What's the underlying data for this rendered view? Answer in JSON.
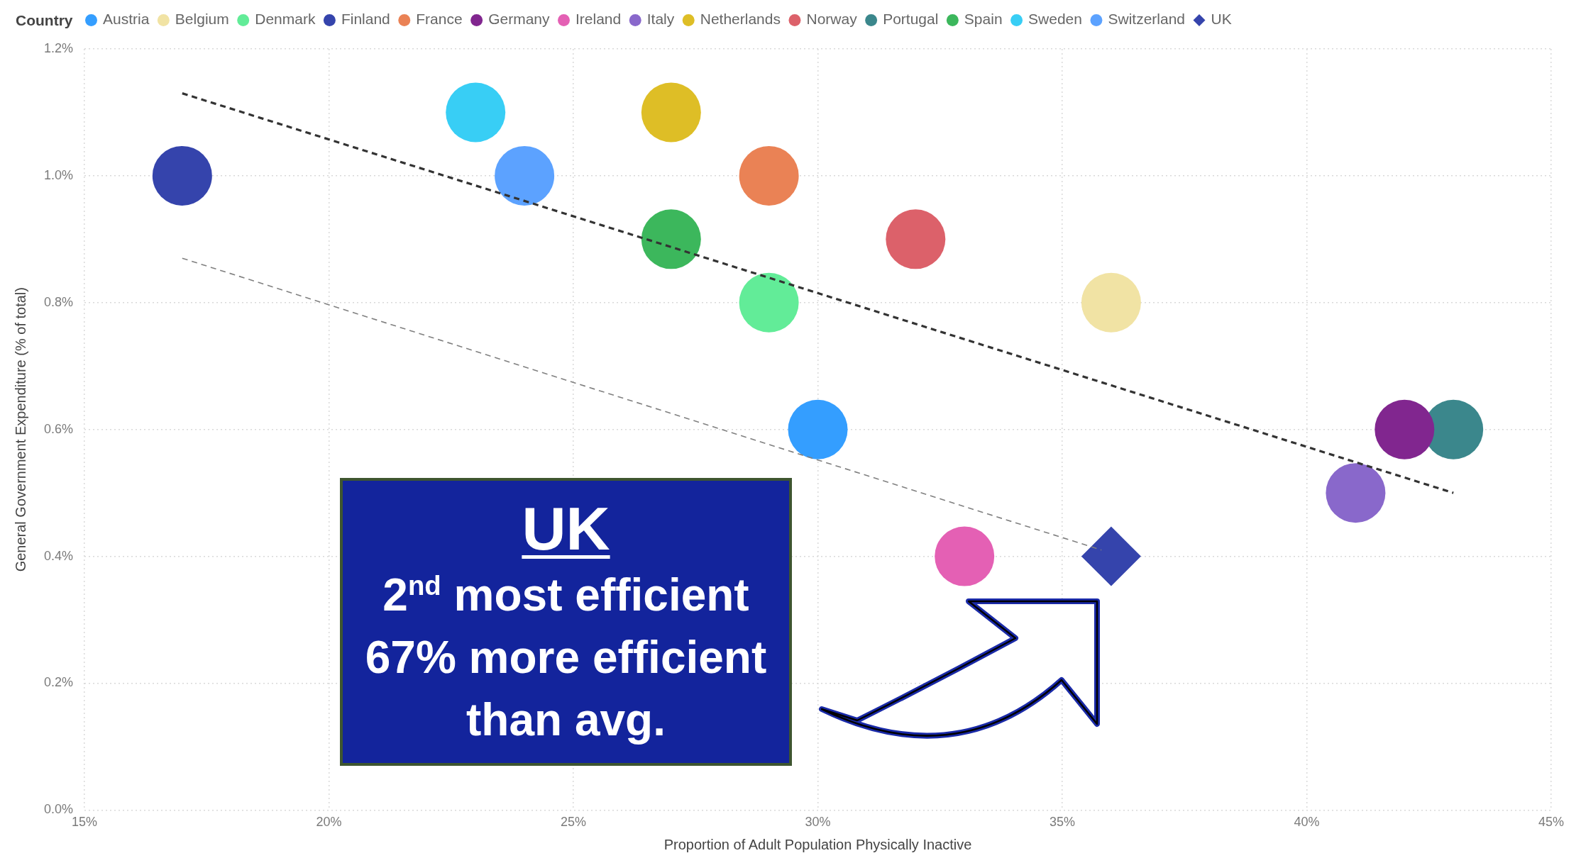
{
  "chart_data": {
    "type": "scatter",
    "xlabel": "Proportion of Adult Population Physically Inactive",
    "ylabel": "General Government Expenditure (% of total)",
    "legend_title": "Country",
    "legend": "top left",
    "marker": "circle",
    "grid": true,
    "xlim": [
      15,
      45
    ],
    "xticks": [
      {
        "value": 15,
        "label": "15%"
      },
      {
        "value": 20,
        "label": "20%"
      },
      {
        "value": 25,
        "label": "25%"
      },
      {
        "value": 30,
        "label": "30%"
      },
      {
        "value": 35,
        "label": "35%"
      },
      {
        "value": 40,
        "label": "40%"
      },
      {
        "value": 45,
        "label": "45%"
      }
    ],
    "ylim": [
      0,
      1.2
    ],
    "yticks": [
      {
        "value": 0,
        "label": "0.0%"
      },
      {
        "value": 0.2,
        "label": "0.2%"
      },
      {
        "value": 0.4,
        "label": "0.4%"
      },
      {
        "value": 0.6,
        "label": "0.6%"
      },
      {
        "value": 0.8,
        "label": "0.8%"
      },
      {
        "value": 1,
        "label": "1.0%"
      },
      {
        "value": 1.2,
        "label": "1.2%"
      }
    ],
    "series": [
      {
        "name": "Austria",
        "color": "#349eff",
        "x": [
          30
        ],
        "values": [
          0.6
        ]
      },
      {
        "name": "Belgium",
        "color": "#f1e3a4",
        "x": [
          36
        ],
        "values": [
          0.8
        ]
      },
      {
        "name": "Denmark",
        "color": "#62ec98",
        "x": [
          29
        ],
        "values": [
          0.8
        ]
      },
      {
        "name": "Finland",
        "color": "#3544ac",
        "x": [
          17
        ],
        "values": [
          1.0
        ]
      },
      {
        "name": "France",
        "color": "#ea8255",
        "x": [
          29
        ],
        "values": [
          1.0
        ]
      },
      {
        "name": "Germany",
        "color": "#81268f",
        "x": [
          42
        ],
        "values": [
          0.6
        ]
      },
      {
        "name": "Ireland",
        "color": "#e460b4",
        "x": [
          33
        ],
        "values": [
          0.4
        ]
      },
      {
        "name": "Italy",
        "color": "#8968cb",
        "x": [
          41
        ],
        "values": [
          0.5
        ]
      },
      {
        "name": "Netherlands",
        "color": "#debe26",
        "x": [
          27
        ],
        "values": [
          1.1
        ]
      },
      {
        "name": "Norway",
        "color": "#dc616a",
        "x": [
          32
        ],
        "values": [
          0.9
        ]
      },
      {
        "name": "Portugal",
        "color": "#3b878c",
        "x": [
          43
        ],
        "values": [
          0.6
        ]
      },
      {
        "name": "Spain",
        "color": "#3cb75c",
        "x": [
          27
        ],
        "values": [
          0.9
        ]
      },
      {
        "name": "Sweden",
        "color": "#38cef5",
        "x": [
          23
        ],
        "values": [
          1.1
        ]
      },
      {
        "name": "Switzerland",
        "color": "#5ca2ff",
        "x": [
          24
        ],
        "values": [
          1.0
        ]
      },
      {
        "name": "UK",
        "color": "#3544ac",
        "x": [
          36
        ],
        "values": [
          0.4
        ],
        "marker": "diamond"
      },
      {
        "type": "line",
        "color": "#333333",
        "x": [
          17,
          43
        ],
        "values": [
          1.13,
          0.5
        ],
        "marker": "none",
        "line_style": "dashed"
      },
      {
        "type": "line",
        "color": "#808080",
        "x": [
          17,
          35.8
        ],
        "values": [
          0.87,
          0.41
        ],
        "marker": "none",
        "line_style": "dashed"
      }
    ],
    "annotations": [
      "UK",
      "2$^{nd}$ most efficient",
      "67% more efficient than avg."
    ]
  }
}
